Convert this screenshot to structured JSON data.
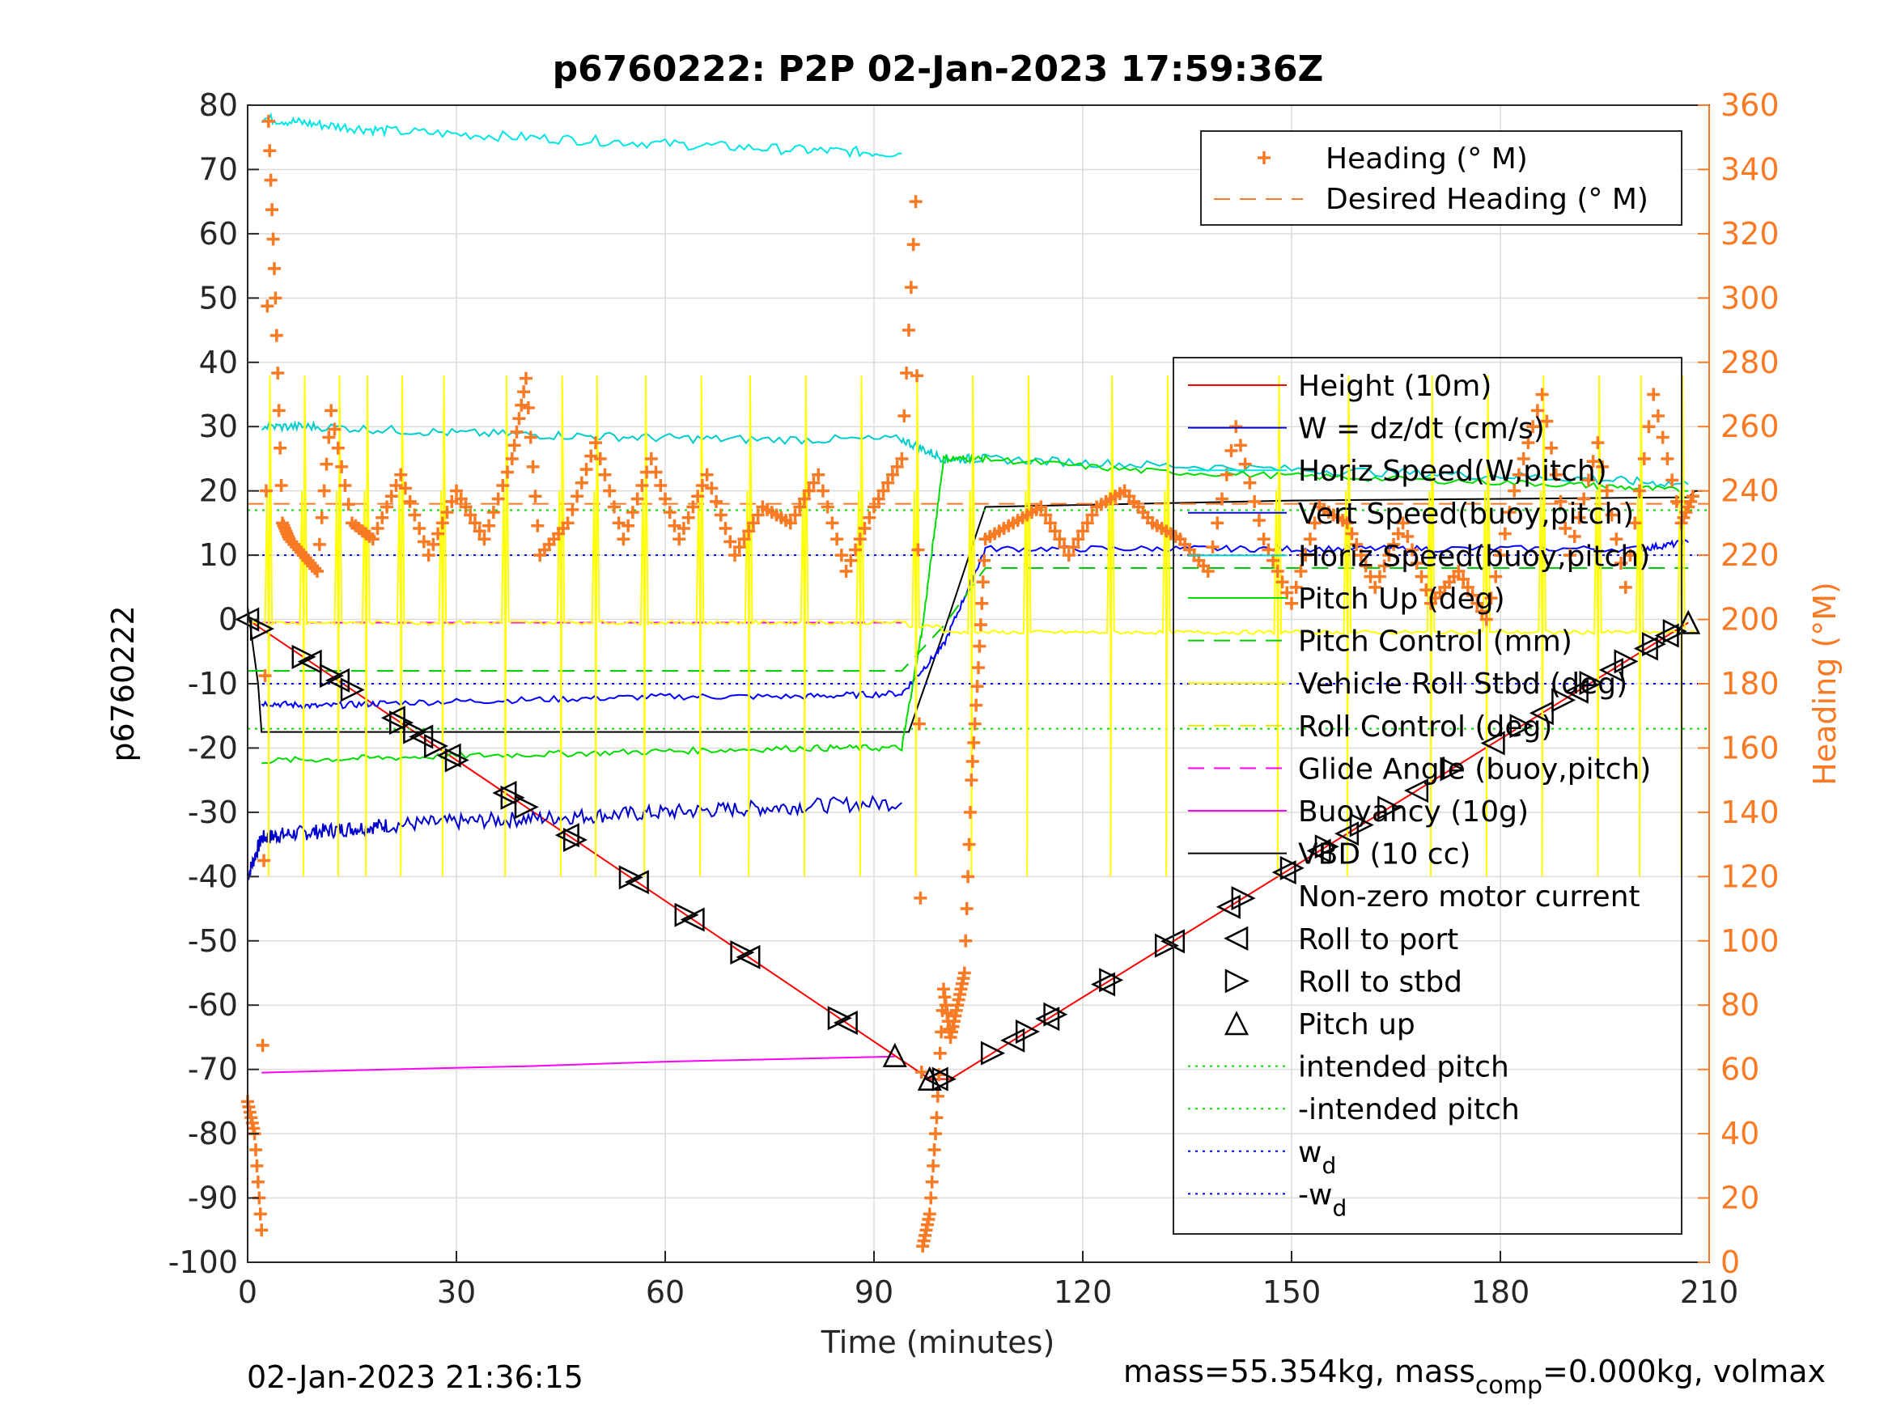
{
  "figure": {
    "title": "p6760222: P2P 02-Jan-2023 17:59:36Z",
    "footer_left": "02-Jan-2023 21:36:15",
    "footer_right_prefix": "mass=55.354kg, mass",
    "footer_right_sub": "comp",
    "footer_right_suffix": "=0.000kg, volmax"
  },
  "chart_data": {
    "type": "line",
    "title": "p6760222: P2P 02-Jan-2023 17:59:36Z",
    "xlabel": "Time (minutes)",
    "ylabel_left": "p6760222",
    "ylabel_right": "Heading (°M)",
    "xlim": [
      0,
      210
    ],
    "ylim_left": [
      -100,
      80
    ],
    "ylim_right": [
      0,
      360
    ],
    "xticks": [
      0,
      30,
      60,
      90,
      120,
      150,
      180,
      210
    ],
    "yticks_left": [
      -100,
      -90,
      -80,
      -70,
      -60,
      -50,
      -40,
      -30,
      -20,
      -10,
      0,
      10,
      20,
      30,
      40,
      50,
      60,
      70,
      80
    ],
    "yticks_right": [
      0,
      20,
      40,
      60,
      80,
      100,
      120,
      140,
      160,
      180,
      200,
      220,
      240,
      260,
      280,
      300,
      320,
      340,
      360
    ],
    "grid": true,
    "colors": {
      "height": "#ff0000",
      "w": "#0000cc",
      "horiz_speed_w": "#00e5e5",
      "vert_speed_buoy": "#0000ff",
      "horiz_speed_buoy": "#00cccc",
      "pitch_up": "#00dd00",
      "pitch_control": "#00cc00",
      "roll_stbd": "#ffff00",
      "roll_control": "#e6e600",
      "glide_angle": "#ff00ff",
      "buoyancy": "#ff00ff",
      "vbd": "#000000",
      "heading": "#f97a24",
      "desired_heading": "#f97a24",
      "intended_pitch": "#00dd00",
      "wd": "#0000ff"
    },
    "legend_top": {
      "placement": "top-right",
      "entries": [
        "Heading (° M)",
        "Desired Heading (° M)"
      ]
    },
    "legend_main": {
      "placement": "right",
      "entries": [
        {
          "label": "Height (10m)",
          "sub": ""
        },
        {
          "label": "W = dz/dt (cm/s)",
          "sub": ""
        },
        {
          "label": "Horiz Speed(W,pitch)",
          "sub": ""
        },
        {
          "label": "Vert Speed(buoy,pitch)",
          "sub": ""
        },
        {
          "label": "Horiz Speed(buoy,pitch)",
          "sub": ""
        },
        {
          "label": "Pitch Up (deg)",
          "sub": ""
        },
        {
          "label": "Pitch Control (mm)",
          "sub": ""
        },
        {
          "label": "Vehicle Roll Stbd (deg)",
          "sub": ""
        },
        {
          "label": "Roll Control (deg)",
          "sub": ""
        },
        {
          "label": "Glide Angle (buoy,pitch)",
          "sub": ""
        },
        {
          "label": "Buoyancy (10g)",
          "sub": ""
        },
        {
          "label": "VBD (10 cc)",
          "sub": ""
        },
        {
          "label": "Non-zero motor current",
          "sub": ""
        },
        {
          "label": "Roll to port",
          "sub": ""
        },
        {
          "label": "Roll to stbd",
          "sub": ""
        },
        {
          "label": "Pitch up",
          "sub": ""
        },
        {
          "label": "intended pitch",
          "sub": ""
        },
        {
          "label": "-intended pitch",
          "sub": ""
        },
        {
          "label": "w",
          "sub": "d"
        },
        {
          "label": "-w",
          "sub": "d"
        }
      ]
    },
    "series": [
      {
        "name": "Height (10m)",
        "x": [
          0,
          98,
          101,
          207
        ],
        "y": [
          0,
          -71.5,
          -71.5,
          -0.5
        ]
      },
      {
        "name": "VBD (10 cc)",
        "x": [
          0,
          1.5,
          2,
          95,
          100,
          106,
          150,
          207,
          208,
          209
        ],
        "y": [
          2,
          -10,
          -17.5,
          -17.5,
          -2,
          17.5,
          18.5,
          19,
          20,
          20
        ]
      },
      {
        "name": "W = dz/dt (cm/s)",
        "x": [
          0,
          2,
          5,
          10,
          15,
          20,
          30,
          40,
          50,
          60,
          70,
          80,
          94
        ],
        "y": [
          -40,
          -34,
          -33.5,
          -33,
          -32.5,
          -32,
          -31.5,
          -31,
          -30.5,
          -30,
          -29.5,
          -29,
          -28.5
        ]
      },
      {
        "name": "Horiz Speed(W,pitch)",
        "x": [
          2,
          10,
          20,
          40,
          60,
          80,
          94
        ],
        "y": [
          78,
          77,
          76,
          75,
          74,
          73,
          72.5
        ]
      },
      {
        "name": "Vert Speed(buoy,pitch)",
        "x": [
          2,
          10,
          20,
          40,
          60,
          80,
          94,
          100,
          106,
          130,
          150,
          170,
          200,
          207
        ],
        "y": [
          -13,
          -13.5,
          -13,
          -12.5,
          -12,
          -12,
          -11.5,
          -4,
          11,
          11,
          11,
          11,
          11,
          12
        ]
      },
      {
        "name": "Horiz Speed(buoy,pitch)",
        "x": [
          2,
          10,
          30,
          50,
          70,
          94,
          100,
          106,
          130,
          160,
          190,
          207
        ],
        "y": [
          30,
          30,
          29,
          28.5,
          28,
          28,
          25,
          25,
          24,
          23,
          22,
          21
        ]
      },
      {
        "name": "Pitch Up (deg)",
        "x": [
          2,
          20,
          40,
          60,
          80,
          94,
          97,
          100,
          106,
          130,
          160,
          190,
          207
        ],
        "y": [
          -22,
          -21.5,
          -21,
          -20.5,
          -20,
          -20,
          -1,
          25,
          25,
          23,
          22,
          21,
          20
        ]
      },
      {
        "name": "Buoyancy (10g)",
        "x": [
          2,
          20,
          40,
          60,
          80,
          93
        ],
        "y": [
          -70.5,
          -70,
          -69.5,
          -68.8,
          -68.3,
          -68
        ]
      },
      {
        "name": "Glide Angle (buoy,pitch)",
        "x": [
          2,
          94
        ],
        "y": [
          -0.5,
          -0.5
        ]
      },
      {
        "name": "Pitch Control (mm)",
        "x": [
          0,
          94,
          94,
          100,
          106,
          207
        ],
        "y": [
          -8,
          -8,
          -8,
          -1,
          8,
          8
        ]
      },
      {
        "name": "intended pitch",
        "x": [
          0,
          210
        ],
        "y": [
          17,
          17
        ]
      },
      {
        "name": "-intended pitch",
        "x": [
          0,
          210
        ],
        "y": [
          -17,
          -17
        ]
      },
      {
        "name": "w_d",
        "x": [
          0,
          210
        ],
        "y": [
          10,
          10
        ]
      },
      {
        "name": "-w_d",
        "x": [
          0,
          210
        ],
        "y": [
          -10,
          -10
        ]
      },
      {
        "name": "Desired Heading (° M)",
        "x": [
          0,
          210
        ],
        "y_right": [
          236,
          236
        ]
      },
      {
        "name": "Heading (° M)",
        "x": [
          0,
          1,
          2,
          3,
          4,
          5,
          6,
          8,
          10,
          12,
          15,
          18,
          22,
          26,
          30,
          34,
          38,
          40,
          42,
          46,
          50,
          54,
          58,
          62,
          66,
          70,
          74,
          78,
          82,
          86,
          90,
          94,
          96,
          97,
          98,
          99,
          100,
          101,
          102,
          103,
          104,
          105,
          106,
          110,
          114,
          118,
          122,
          126,
          130,
          134,
          138,
          142,
          146,
          150,
          154,
          158,
          162,
          166,
          170,
          174,
          178,
          182,
          186,
          190,
          194,
          198,
          202,
          206,
          208
        ],
        "y_right": [
          50,
          40,
          10,
          355,
          300,
          230,
          225,
          220,
          215,
          265,
          230,
          225,
          245,
          220,
          240,
          225,
          250,
          275,
          220,
          230,
          255,
          225,
          250,
          225,
          245,
          220,
          235,
          230,
          245,
          215,
          235,
          250,
          330,
          5,
          15,
          45,
          85,
          70,
          80,
          90,
          150,
          185,
          225,
          230,
          235,
          220,
          235,
          240,
          230,
          225,
          215,
          260,
          225,
          205,
          235,
          230,
          210,
          230,
          205,
          215,
          200,
          240,
          270,
          220,
          255,
          210,
          270,
          230,
          240
        ]
      }
    ],
    "markers": {
      "roll_to_stbd_x": [
        2,
        8,
        12,
        15,
        22,
        24,
        27,
        30,
        38,
        40,
        47,
        55,
        63,
        71,
        85,
        100,
        107,
        112,
        116,
        124,
        132,
        143,
        150,
        155,
        160,
        164,
        173,
        183,
        189,
        193,
        198,
        202,
        205
      ],
      "roll_to_port_x": [
        0,
        9,
        13,
        21,
        25,
        29,
        37,
        46,
        56,
        64,
        72,
        86,
        99,
        110,
        115,
        123,
        133,
        141,
        149,
        154,
        158,
        168,
        179,
        186,
        191,
        196,
        201,
        204
      ],
      "pitch_up_x": [
        93,
        98,
        207
      ]
    },
    "y_spikes": {
      "roll_stbd_spike_x": [
        3,
        8,
        13,
        17,
        22,
        28,
        37,
        45,
        50,
        57,
        65,
        72,
        80,
        88,
        96,
        104,
        112,
        124,
        132,
        148,
        158,
        170,
        178,
        186,
        194,
        200,
        206
      ]
    }
  }
}
